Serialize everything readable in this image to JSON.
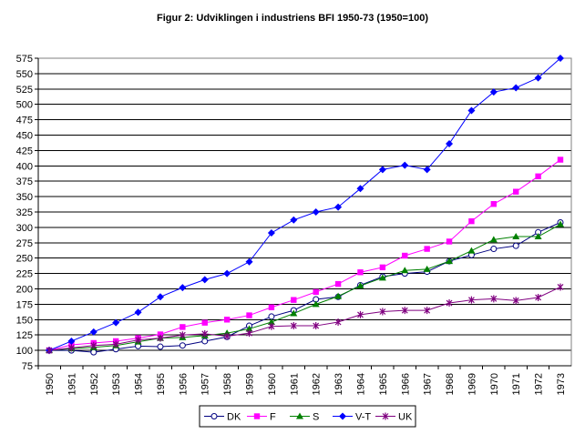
{
  "chart_data": {
    "type": "line",
    "title": "Figur 2: Udviklingen i industriens BFI 1950-73 (1950=100)",
    "x": [
      1950,
      1951,
      1952,
      1953,
      1954,
      1955,
      1956,
      1957,
      1958,
      1959,
      1960,
      1961,
      1962,
      1963,
      1964,
      1965,
      1966,
      1967,
      1968,
      1969,
      1970,
      1971,
      1972,
      1973
    ],
    "ylim": [
      75,
      575
    ],
    "yticks": [
      75,
      100,
      125,
      150,
      175,
      200,
      225,
      250,
      275,
      300,
      325,
      350,
      375,
      400,
      425,
      450,
      475,
      500,
      525,
      550,
      575
    ],
    "grid": "horizontal",
    "legend_position": "bottom",
    "series": [
      {
        "name": "DK",
        "color": "#000080",
        "marker": "circle-open",
        "values": [
          100,
          100,
          97,
          102,
          107,
          106,
          108,
          115,
          122,
          140,
          155,
          165,
          183,
          187,
          206,
          220,
          225,
          228,
          245,
          255,
          265,
          270,
          292,
          308
        ]
      },
      {
        "name": "F",
        "color": "#ff00ff",
        "marker": "square",
        "values": [
          100,
          109,
          112,
          115,
          120,
          126,
          138,
          145,
          150,
          157,
          170,
          182,
          195,
          208,
          227,
          235,
          254,
          265,
          277,
          310,
          338,
          358,
          383,
          410
        ]
      },
      {
        "name": "S",
        "color": "#008000",
        "marker": "triangle",
        "values": [
          100,
          103,
          105,
          108,
          114,
          120,
          121,
          124,
          128,
          135,
          146,
          160,
          175,
          188,
          205,
          218,
          230,
          232,
          245,
          262,
          280,
          285,
          285,
          305
        ]
      },
      {
        "name": "V-T",
        "color": "#0000ff",
        "marker": "diamond",
        "values": [
          100,
          115,
          130,
          145,
          162,
          187,
          202,
          215,
          225,
          244,
          291,
          312,
          325,
          333,
          363,
          394,
          401,
          394,
          436,
          490,
          520,
          527,
          543,
          575
        ]
      },
      {
        "name": "UK",
        "color": "#800080",
        "marker": "star",
        "values": [
          100,
          104,
          108,
          110,
          117,
          120,
          125,
          127,
          123,
          128,
          139,
          140,
          140,
          146,
          158,
          163,
          165,
          165,
          177,
          182,
          184,
          181,
          186,
          203
        ]
      }
    ]
  }
}
